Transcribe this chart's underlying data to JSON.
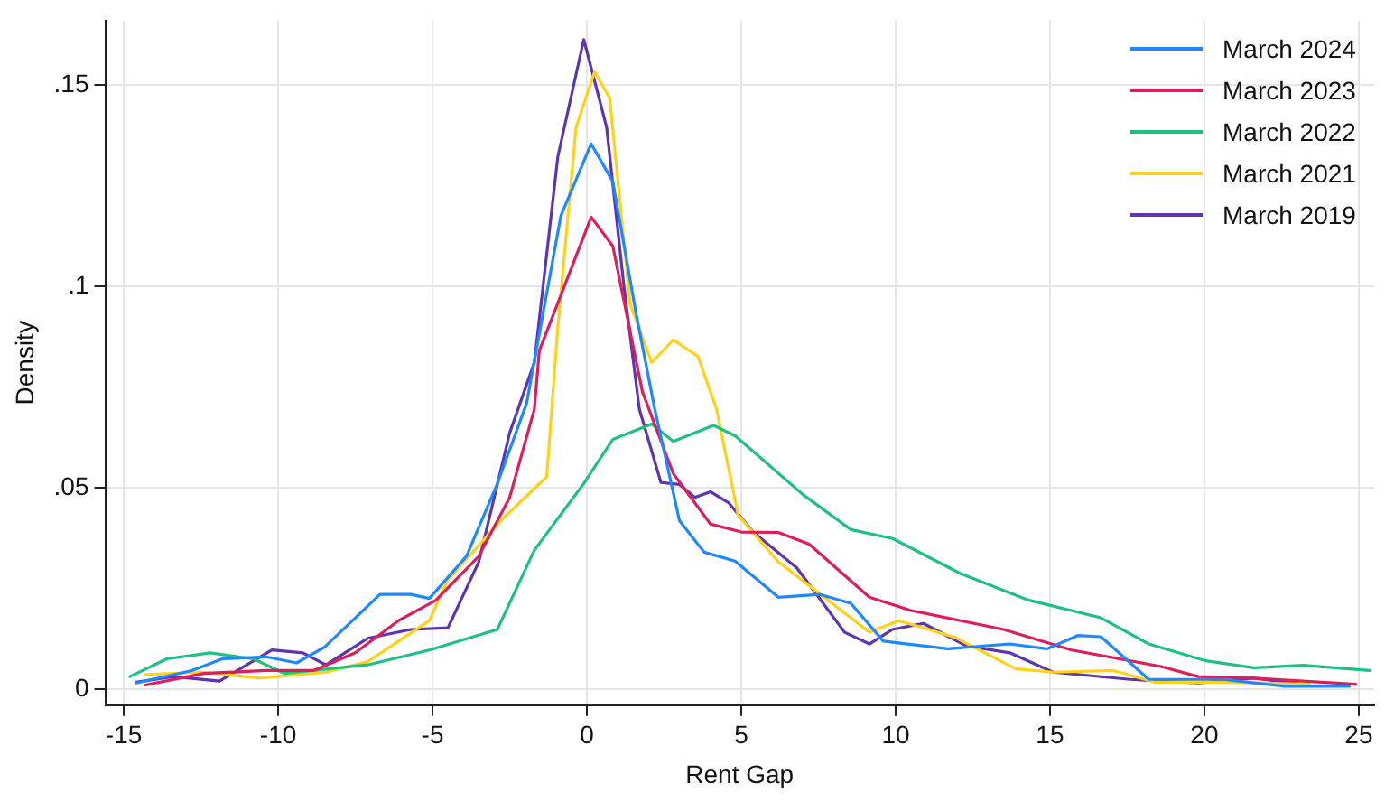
{
  "chart_data": {
    "type": "line",
    "xlabel": "Rent Gap",
    "ylabel": "Density",
    "xlim": [
      -15.6,
      25.5
    ],
    "xticks": [
      -15,
      -10,
      -5,
      0,
      5,
      10,
      15,
      20,
      25
    ],
    "ylim": [
      -0.004,
      0.166
    ],
    "yticks": [
      {
        "value": 0,
        "label": "0"
      },
      {
        "value": 0.05,
        "label": ".05"
      },
      {
        "value": 0.1,
        "label": ".1"
      },
      {
        "value": 0.15,
        "label": ".15"
      }
    ],
    "grid": true,
    "legend": "top right",
    "marker": "none",
    "line_style": "solid",
    "series": [
      {
        "name": "March 2024",
        "color": "#1f88ff",
        "x": [
          -14.6,
          -12.8,
          -11.8,
          -10.4,
          -9.4,
          -8.5,
          -6.7,
          -5.7,
          -5.1,
          -3.9,
          -2.9,
          -1.95,
          -0.84,
          0.14,
          0.84,
          1.6,
          2.2,
          3.0,
          3.8,
          4.8,
          6.2,
          7.55,
          8.55,
          9.6,
          11.7,
          13.7,
          14.9,
          15.9,
          16.65,
          18.2,
          20.6,
          22.6,
          24.7
        ],
        "values": [
          0.0015,
          0.0046,
          0.0075,
          0.008,
          0.0065,
          0.0104,
          0.0235,
          0.0235,
          0.0225,
          0.033,
          0.051,
          0.071,
          0.1176,
          0.1354,
          0.126,
          0.093,
          0.0695,
          0.0418,
          0.034,
          0.0318,
          0.0228,
          0.0235,
          0.0213,
          0.0119,
          0.01,
          0.0112,
          0.01,
          0.0133,
          0.013,
          0.0024,
          0.0024,
          0.0007,
          0.0007
        ]
      },
      {
        "name": "March 2023",
        "color": "#dc1f5a",
        "x": [
          -14.3,
          -12.4,
          -10.4,
          -8.85,
          -7.5,
          -6.1,
          -4.9,
          -3.5,
          -2.5,
          -1.7,
          -1.54,
          0.14,
          0.84,
          1.8,
          2.8,
          4.0,
          5.0,
          6.2,
          7.2,
          9.15,
          10.5,
          13.5,
          15.7,
          18.6,
          19.8,
          21.6,
          24.9
        ],
        "values": [
          0.001,
          0.0039,
          0.0046,
          0.0046,
          0.009,
          0.017,
          0.022,
          0.033,
          0.0476,
          0.0695,
          0.084,
          0.1172,
          0.11,
          0.0738,
          0.0535,
          0.041,
          0.039,
          0.0389,
          0.036,
          0.0228,
          0.0195,
          0.0148,
          0.0097,
          0.0056,
          0.0031,
          0.0027,
          0.0012
        ]
      },
      {
        "name": "March 2022",
        "color": "#20c083",
        "x": [
          -14.8,
          -13.6,
          -12.2,
          -10.8,
          -9.8,
          -7.1,
          -5.1,
          -2.9,
          -1.7,
          -0.15,
          0.84,
          2.1,
          2.8,
          4.1,
          4.8,
          5.8,
          7.0,
          8.55,
          9.9,
          12.1,
          14.3,
          16.65,
          18.2,
          20.0,
          21.6,
          23.2,
          25.35
        ],
        "values": [
          0.0031,
          0.0075,
          0.009,
          0.0075,
          0.0039,
          0.006,
          0.0097,
          0.0148,
          0.0345,
          0.0505,
          0.062,
          0.0658,
          0.0615,
          0.0655,
          0.0629,
          0.0563,
          0.0483,
          0.0396,
          0.0374,
          0.0287,
          0.0221,
          0.0177,
          0.0112,
          0.0071,
          0.0053,
          0.0059,
          0.0046
        ]
      },
      {
        "name": "March 2021",
        "color": "#ffd21a",
        "x": [
          -14.3,
          -12.4,
          -10.6,
          -8.45,
          -7.1,
          -5.1,
          -4.5,
          -2.7,
          -1.3,
          -0.94,
          -0.35,
          0.25,
          0.74,
          1.4,
          2.1,
          2.8,
          3.6,
          4.2,
          4.9,
          6.2,
          7.2,
          9.15,
          10.1,
          11.9,
          13.9,
          15.1,
          17.05,
          18.4,
          20.6,
          23.4
        ],
        "values": [
          0.0036,
          0.0042,
          0.0027,
          0.0042,
          0.0068,
          0.017,
          0.0272,
          0.0425,
          0.0527,
          0.0899,
          0.1395,
          0.1533,
          0.1468,
          0.0957,
          0.0811,
          0.0867,
          0.0826,
          0.0695,
          0.0432,
          0.0316,
          0.0257,
          0.0141,
          0.017,
          0.0129,
          0.005,
          0.0042,
          0.0046,
          0.0017,
          0.0017,
          0.0012
        ]
      },
      {
        "name": "March 2019",
        "color": "#5e35b1",
        "x": [
          -14.6,
          -13.4,
          -11.9,
          -10.2,
          -9.2,
          -8.45,
          -7.1,
          -5.7,
          -4.5,
          -3.5,
          -2.5,
          -1.7,
          -0.94,
          -0.1,
          0.64,
          1.2,
          1.7,
          2.4,
          3.0,
          3.5,
          4.0,
          4.6,
          5.4,
          6.8,
          8.35,
          9.15,
          9.9,
          10.9,
          12.3,
          13.7,
          15.1,
          17.6,
          19.8,
          21.6,
          23.4
        ],
        "values": [
          0.0017,
          0.0031,
          0.002,
          0.0097,
          0.009,
          0.006,
          0.0126,
          0.0148,
          0.0152,
          0.0316,
          0.0636,
          0.0811,
          0.1322,
          0.1613,
          0.1395,
          0.1001,
          0.0695,
          0.0513,
          0.0508,
          0.0476,
          0.049,
          0.0462,
          0.0389,
          0.0301,
          0.0141,
          0.0112,
          0.0148,
          0.0163,
          0.0107,
          0.009,
          0.0042,
          0.0024,
          0.0015,
          0.0027,
          0.001
        ]
      }
    ]
  }
}
